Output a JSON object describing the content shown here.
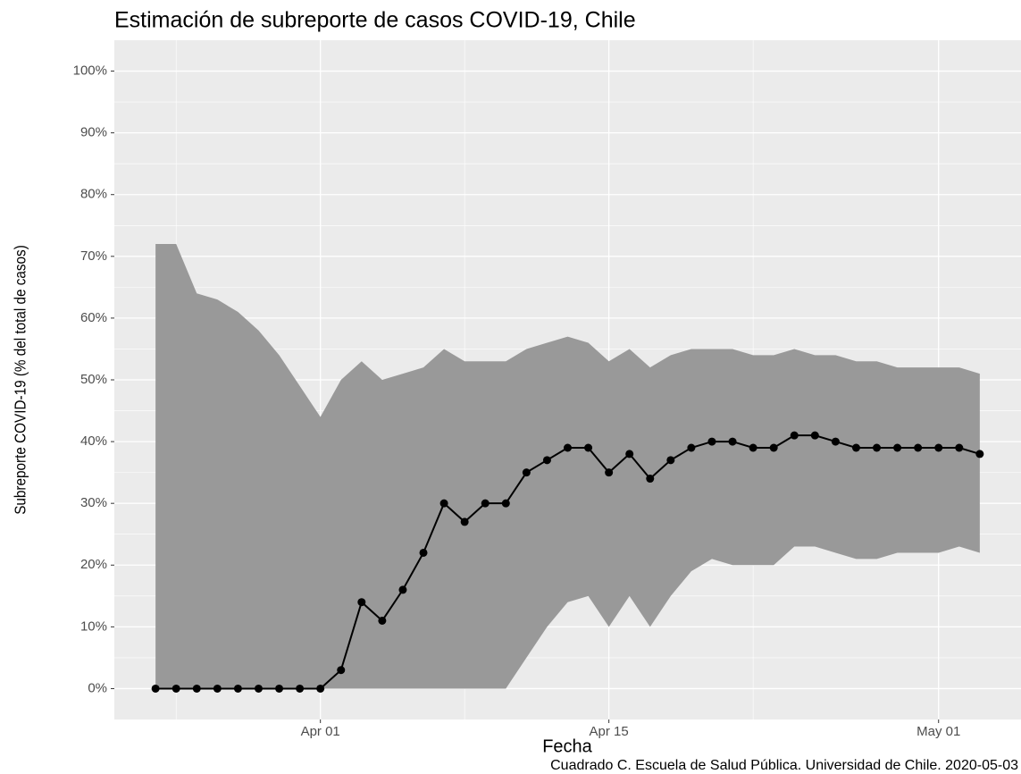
{
  "chart_data": {
    "type": "line_band",
    "title": "Estimación de subreporte de casos COVID-19, Chile",
    "x_label": "Fecha",
    "y_label": "Subreporte COVID-19 (% del total de casos)",
    "caption": "Cuadrado C. Escuela de Salud Pública. Universidad de Chile. 2020-05-03",
    "x": [
      "Mar 24",
      "Mar 25",
      "Mar 26",
      "Mar 27",
      "Mar 28",
      "Mar 29",
      "Mar 30",
      "Mar 31",
      "Apr 01",
      "Apr 02",
      "Apr 03",
      "Apr 04",
      "Apr 05",
      "Apr 06",
      "Apr 07",
      "Apr 08",
      "Apr 09",
      "Apr 10",
      "Apr 11",
      "Apr 12",
      "Apr 13",
      "Apr 14",
      "Apr 15",
      "Apr 16",
      "Apr 17",
      "Apr 18",
      "Apr 19",
      "Apr 20",
      "Apr 21",
      "Apr 22",
      "Apr 23",
      "Apr 24",
      "Apr 25",
      "Apr 26",
      "Apr 27",
      "Apr 28",
      "Apr 29",
      "Apr 30",
      "May 01",
      "May 02",
      "May 03"
    ],
    "values": [
      0,
      0,
      0,
      0,
      0,
      0,
      0,
      0,
      0,
      3,
      14,
      11,
      16,
      22,
      30,
      27,
      30,
      30,
      35,
      37,
      39,
      39,
      35,
      38,
      34,
      37,
      39,
      40,
      40,
      39,
      39,
      41,
      41,
      40,
      39,
      39,
      39,
      39,
      39,
      39,
      38
    ],
    "band": {
      "upper": [
        72,
        72,
        64,
        63,
        61,
        58,
        54,
        49,
        44,
        50,
        53,
        50,
        51,
        52,
        55,
        53,
        53,
        53,
        55,
        56,
        57,
        56,
        53,
        55,
        52,
        54,
        55,
        55,
        55,
        54,
        54,
        55,
        54,
        54,
        53,
        53,
        52,
        52,
        52,
        52,
        51
      ],
      "lower": [
        0,
        0,
        0,
        0,
        0,
        0,
        0,
        0,
        0,
        0,
        0,
        0,
        0,
        0,
        0,
        0,
        0,
        0,
        5,
        10,
        14,
        15,
        10,
        15,
        10,
        15,
        19,
        21,
        20,
        20,
        20,
        23,
        23,
        22,
        21,
        21,
        22,
        22,
        22,
        23,
        22
      ]
    },
    "line_color": "#000000",
    "band_color": "#999999",
    "xticks": [
      "Apr 01",
      "Apr 15",
      "May 01"
    ],
    "ylim": [
      -5,
      105
    ],
    "yticks": [
      {
        "value": 0,
        "label": "0%"
      },
      {
        "value": 10,
        "label": "10%"
      },
      {
        "value": 20,
        "label": "20%"
      },
      {
        "value": 30,
        "label": "30%"
      },
      {
        "value": 40,
        "label": "40%"
      },
      {
        "value": 50,
        "label": "50%"
      },
      {
        "value": 60,
        "label": "60%"
      },
      {
        "value": 70,
        "label": "70%"
      },
      {
        "value": 80,
        "label": "80%"
      },
      {
        "value": 90,
        "label": "90%"
      },
      {
        "value": 100,
        "label": "100%"
      }
    ],
    "grid": true
  }
}
